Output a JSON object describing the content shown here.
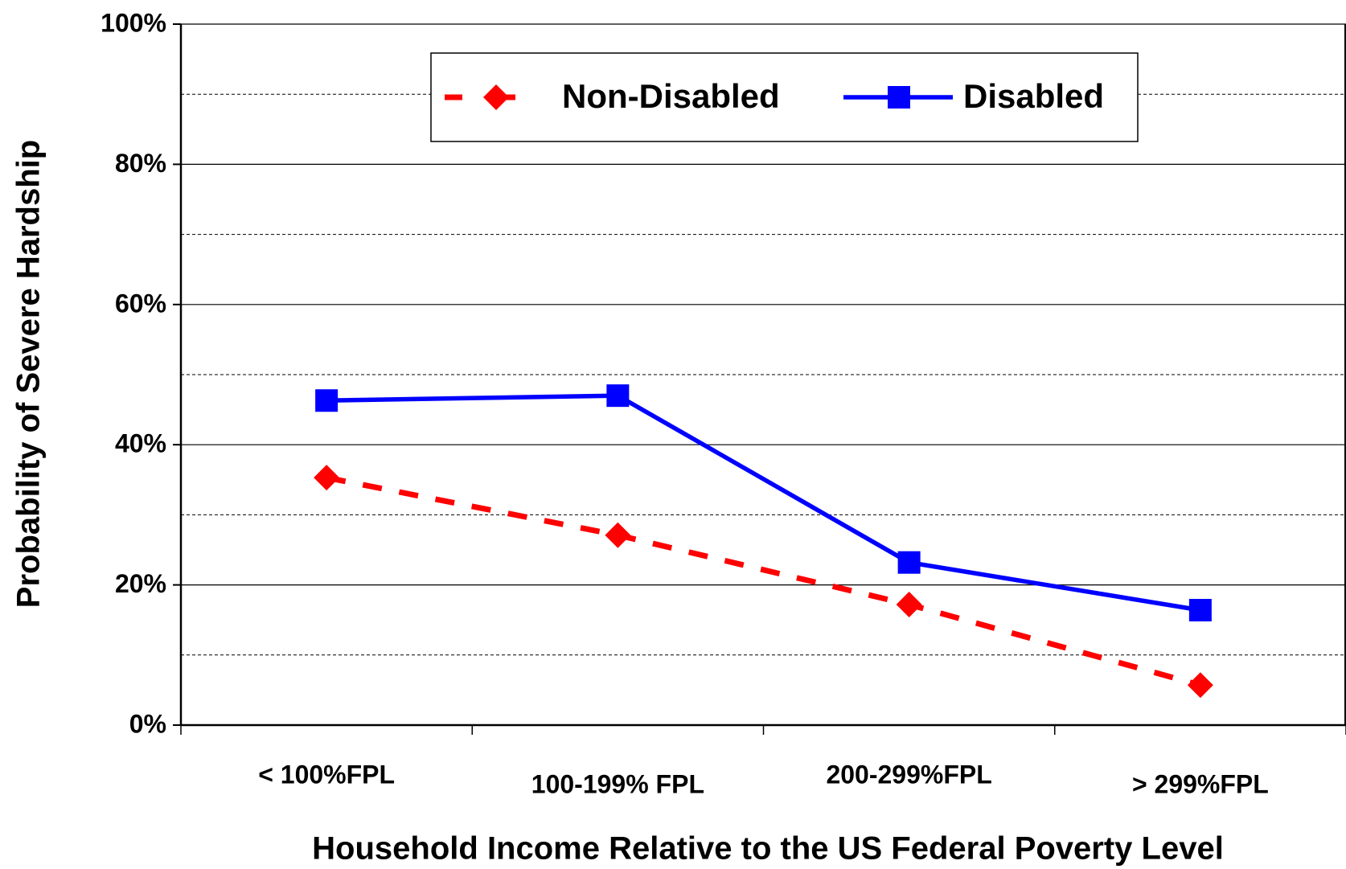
{
  "chart_data": {
    "type": "line",
    "x_label": "Household Income Relative to the US Federal Poverty Level",
    "y_label": "Probability of Severe Hardship",
    "categories": [
      "< 100%FPL",
      "100-199% FPL",
      "200-299%FPL",
      "> 299%FPL"
    ],
    "series": [
      {
        "name": "Non-Disabled",
        "color": "#ff0000",
        "marker": "diamond",
        "dashed": true,
        "values": [
          35.3,
          27.1,
          17.2,
          5.7
        ]
      },
      {
        "name": "Disabled",
        "color": "#0000ff",
        "marker": "square",
        "dashed": false,
        "values": [
          46.3,
          47,
          23.2,
          16.4
        ]
      }
    ],
    "ylim": [
      0,
      100
    ],
    "yticks": [
      {
        "value": 0,
        "label": "0%"
      },
      {
        "value": 20,
        "label": "20%"
      },
      {
        "value": 40,
        "label": "40%"
      },
      {
        "value": 60,
        "label": "60%"
      },
      {
        "value": 80,
        "label": "80%"
      },
      {
        "value": 100,
        "label": "100%"
      }
    ],
    "minor_yticks": [
      10,
      30,
      50,
      70,
      90
    ],
    "grid": true,
    "legend": "top"
  }
}
